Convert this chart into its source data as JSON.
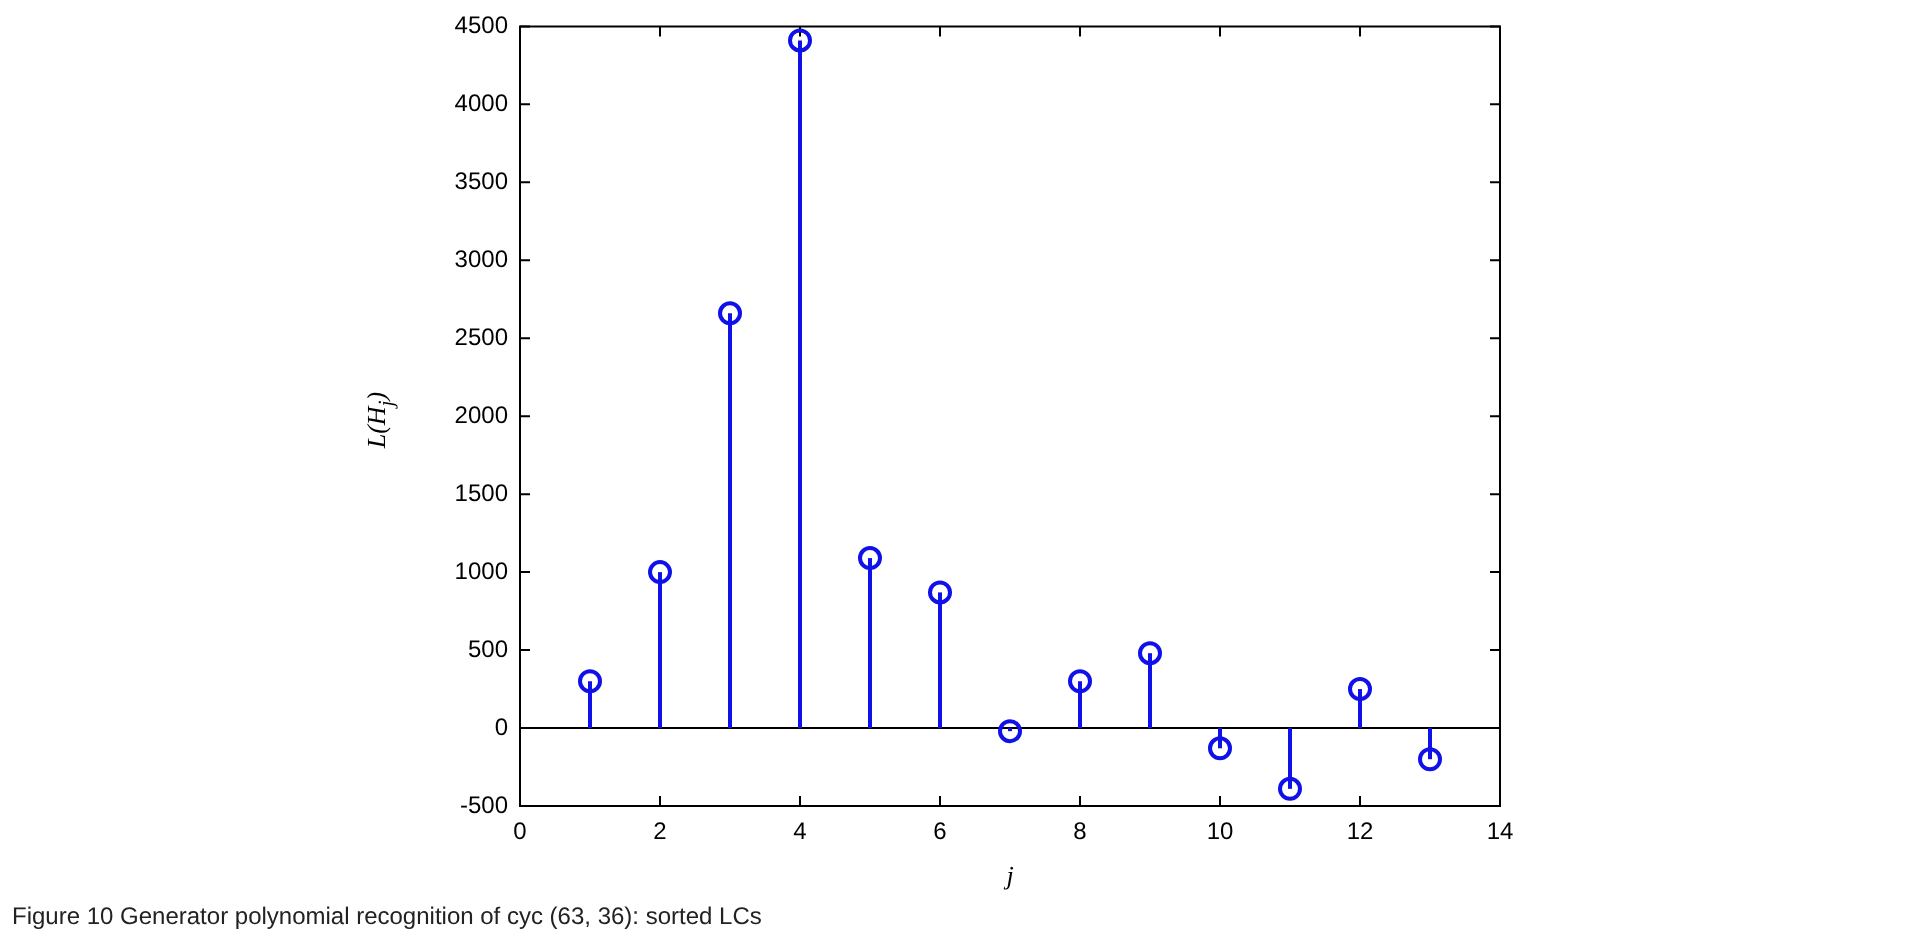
{
  "chart_data": {
    "type": "lollipop",
    "xlabel": "j",
    "ylabel": "L(H$_{j}$)",
    "x": [
      1,
      2,
      3,
      4,
      5,
      6,
      7,
      8,
      9,
      10,
      11,
      12,
      13
    ],
    "values": [
      300,
      1000,
      2660,
      4410,
      1090,
      870,
      -20,
      300,
      480,
      -130,
      -390,
      250,
      -200
    ],
    "color": "#1010e8",
    "marker": "circle",
    "xlim": [
      0,
      14
    ],
    "xticks": [
      0,
      2,
      4,
      6,
      8,
      10,
      12,
      14
    ],
    "ylim": [
      -500,
      4500
    ],
    "yticks": [
      -500,
      0,
      500,
      1000,
      1500,
      2000,
      2500,
      3000,
      3500,
      4000,
      4500
    ],
    "grid": false,
    "annotations": [
      "Figure 10 Generator polynomial recognition of cyc (63, 36): sorted LCs"
    ]
  }
}
